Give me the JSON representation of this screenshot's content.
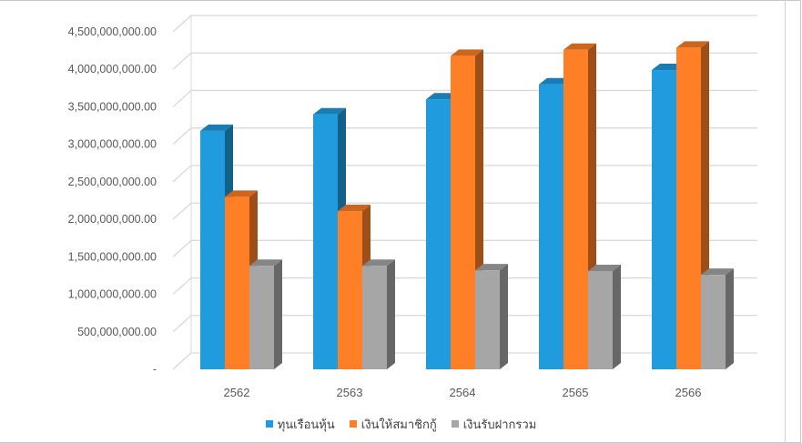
{
  "chart_data": {
    "type": "bar",
    "title": "",
    "xlabel": "",
    "ylabel": "",
    "categories": [
      "2562",
      "2563",
      "2564",
      "2565",
      "2566"
    ],
    "series": [
      {
        "name": "ทุนเรือนหุ้น",
        "color": "#1F9BDE",
        "values": [
          3180000000,
          3400000000,
          3600000000,
          3800000000,
          3990000000
        ]
      },
      {
        "name": "เงินให้สมาชิกกู้",
        "color": "#FF7F27",
        "values": [
          2300000000,
          2110000000,
          4180000000,
          4260000000,
          4290000000
        ]
      },
      {
        "name": "เงินรับฝากรวม",
        "color": "#A6A6A6",
        "values": [
          1380000000,
          1380000000,
          1320000000,
          1310000000,
          1260000000
        ]
      }
    ],
    "ylim": [
      0,
      4500000000
    ],
    "yticks": [
      "-",
      "500,000,000.00",
      "1,000,000,000.00",
      "1,500,000,000.00",
      "2,000,000,000.00",
      "2,500,000,000.00",
      "3,000,000,000.00",
      "3,500,000,000.00",
      "4,000,000,000.00",
      "4,500,000,000.00"
    ],
    "grid": true,
    "legend_position": "bottom",
    "style": "3d-clustered-column"
  }
}
